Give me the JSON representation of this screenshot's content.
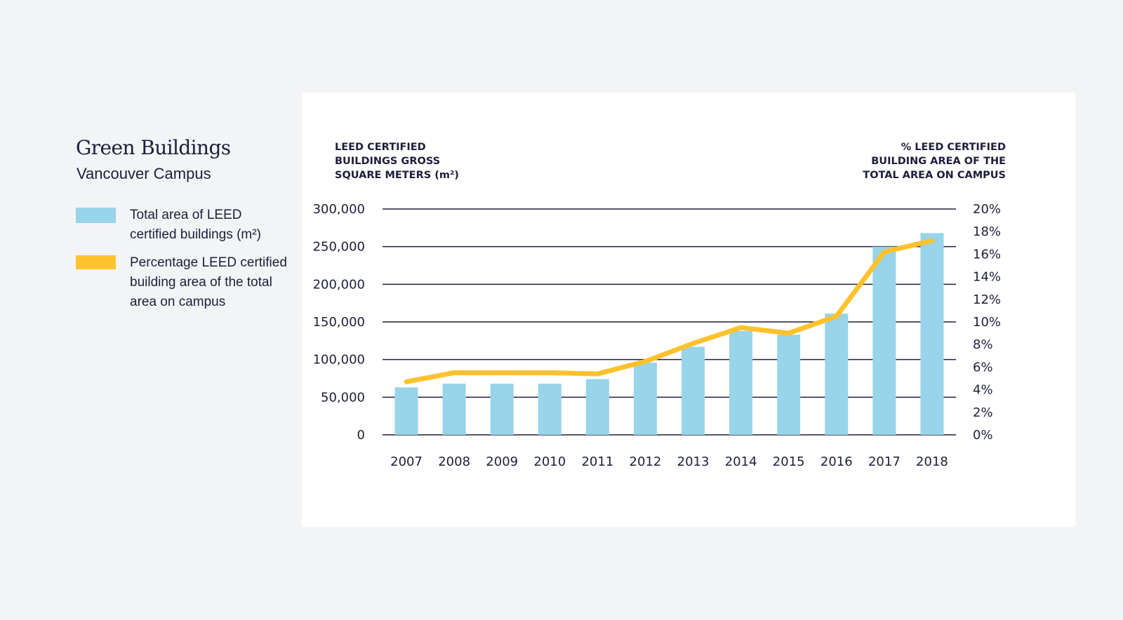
{
  "panel": {
    "title": "Green Buildings",
    "subtitle": "Vancouver Campus"
  },
  "legend": [
    {
      "label": "Total area of LEED certified buildings (m²)",
      "color": "#98d4ea",
      "shape": "bar"
    },
    {
      "label": "Percentage LEED certified building area of the total area on campus",
      "color": "#fec22d",
      "shape": "line"
    }
  ],
  "chart_data": {
    "type": "bar",
    "title": "",
    "categories": [
      "2007",
      "2008",
      "2009",
      "2010",
      "2011",
      "2012",
      "2013",
      "2014",
      "2015",
      "2016",
      "2017",
      "2018"
    ],
    "series": [
      {
        "name": "Total area of LEED certified buildings (m²)",
        "type": "bar",
        "axis": "left",
        "color": "#98d4ea",
        "values": [
          63000,
          68000,
          68000,
          68000,
          74000,
          96000,
          117000,
          138000,
          133000,
          161000,
          250000,
          268000
        ]
      },
      {
        "name": "Percentage LEED certified building area of the total area on campus",
        "type": "line",
        "axis": "right",
        "color": "#fec22d",
        "values": [
          4.7,
          5.5,
          5.5,
          5.5,
          5.4,
          6.5,
          8.1,
          9.5,
          9.0,
          10.5,
          16.2,
          17.2
        ]
      }
    ],
    "y_left": {
      "label": [
        "LEED CERTIFIED",
        "BUILDINGS GROSS",
        "SQUARE METERS (m²)"
      ],
      "range": [
        0,
        300000
      ],
      "ticks": [
        "0",
        "50,000",
        "100,000",
        "150,000",
        "200,000",
        "250,000",
        "300,000"
      ],
      "tick_values": [
        0,
        50000,
        100000,
        150000,
        200000,
        250000,
        300000
      ]
    },
    "y_right": {
      "label": [
        "% LEED CERTIFIED",
        "BUILDING AREA OF THE",
        "TOTAL AREA ON CAMPUS"
      ],
      "range": [
        0,
        20
      ],
      "ticks": [
        "0%",
        "2%",
        "4%",
        "6%",
        "8%",
        "10%",
        "12%",
        "14%",
        "16%",
        "18%",
        "20%"
      ],
      "tick_values": [
        0,
        2,
        4,
        6,
        8,
        10,
        12,
        14,
        16,
        18,
        20
      ]
    },
    "grid": true,
    "gridline_color": "#1d1f3a",
    "legend_position": "left"
  }
}
